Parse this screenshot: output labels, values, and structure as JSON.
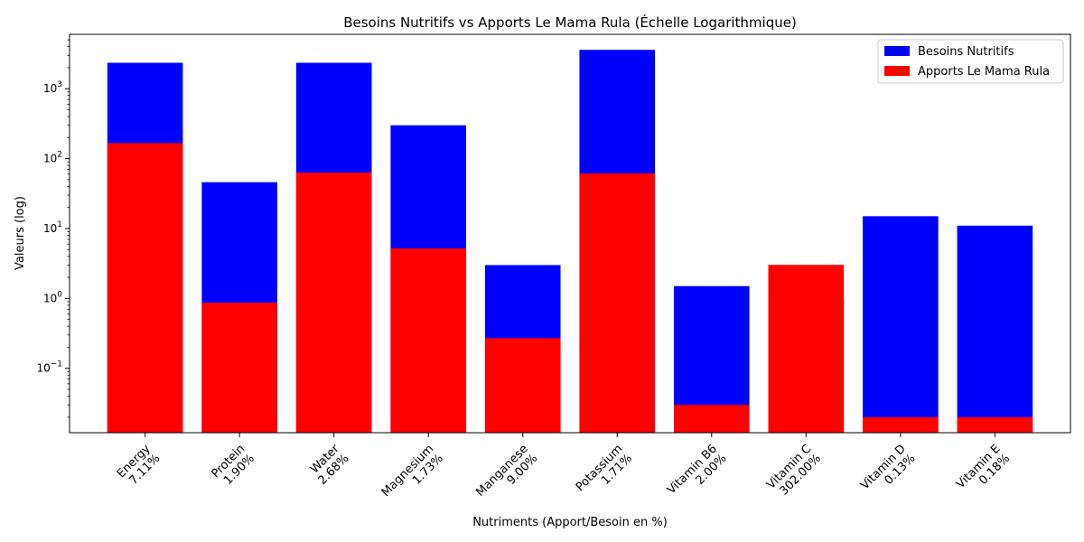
{
  "chart_data": {
    "type": "bar",
    "title": "Besoins Nutritifs vs Apports Le Mama Rula (Échelle Logarithmique)",
    "xlabel": "Nutriments (Apport/Besoin en %)",
    "ylabel": "Valeurs (log)",
    "yscale": "log",
    "ylim": [
      0.012,
      6000
    ],
    "yticks": [
      {
        "value": 0.1,
        "base": "10",
        "exp": "−1"
      },
      {
        "value": 1,
        "base": "10",
        "exp": "0"
      },
      {
        "value": 10,
        "base": "10",
        "exp": "1"
      },
      {
        "value": 100,
        "base": "10",
        "exp": "2"
      },
      {
        "value": 1000,
        "base": "10",
        "exp": "3"
      }
    ],
    "categories": [
      "Energy",
      "Protein",
      "Water",
      "Magnesium",
      "Manganese",
      "Potassium",
      "Vitamin B6",
      "Vitamin C",
      "Vitamin D",
      "Vitamin E"
    ],
    "percent_labels": [
      "7.11%",
      "1.90%",
      "2.68%",
      "1.73%",
      "9.00%",
      "1.71%",
      "2.00%",
      "302.00%",
      "0.13%",
      "0.18%"
    ],
    "series": [
      {
        "name": "Besoins Nutritifs",
        "color": "#0000ff",
        "values": [
          2350,
          46,
          2350,
          300,
          3,
          3600,
          1.5,
          1,
          15,
          11
        ]
      },
      {
        "name": "Apports Le Mama Rula",
        "color": "#ff0000",
        "values": [
          167,
          0.87,
          63,
          5.2,
          0.27,
          61.5,
          0.03,
          3.02,
          0.02,
          0.02
        ]
      }
    ],
    "legend_position": "upper right",
    "grid": false
  }
}
